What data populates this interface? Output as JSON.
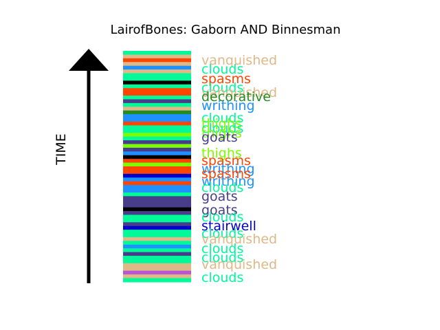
{
  "chart_data": {
    "type": "bar",
    "title": "LairofBones: Gaborn AND Binnesman",
    "ylabel": "TIME",
    "xlabel": "",
    "orientation": "vertical-stacked-timeline",
    "direction": "time increases upward",
    "bands": [
      {
        "label": "vanquished",
        "color": "#deb887"
      },
      {
        "label": "clouds",
        "color": "#00fa9a"
      },
      {
        "label": "spasms",
        "color": "#ff4500"
      },
      {
        "label": "clouds",
        "color": "#00fa9a"
      },
      {
        "label": "vanquished",
        "color": "#deb887"
      },
      {
        "label": "decorative",
        "color": "#228b22"
      },
      {
        "label": "writhing",
        "color": "#1e90ff"
      },
      {
        "label": "clouds",
        "color": "#00fa9a"
      },
      {
        "label": "thighs",
        "color": "#7cfc00"
      },
      {
        "label": "clouds",
        "color": "#00fa9a"
      },
      {
        "label": "thighs",
        "color": "#7cfc00"
      },
      {
        "label": "goats",
        "color": "#483d8b"
      },
      {
        "label": "thighs",
        "color": "#7cfc00"
      },
      {
        "label": "spasms",
        "color": "#ff4500"
      },
      {
        "label": "writhing",
        "color": "#1e90ff"
      },
      {
        "label": "spasms",
        "color": "#ff4500"
      },
      {
        "label": "writhing",
        "color": "#1e90ff"
      },
      {
        "label": "clouds",
        "color": "#00fa9a"
      },
      {
        "label": "goats",
        "color": "#483d8b"
      },
      {
        "label": "goats",
        "color": "#483d8b"
      },
      {
        "label": "clouds",
        "color": "#00fa9a"
      },
      {
        "label": "stairwell",
        "color": "#0000cd"
      },
      {
        "label": "clouds",
        "color": "#00fa9a"
      },
      {
        "label": "vanquished",
        "color": "#deb887"
      },
      {
        "label": "clouds",
        "color": "#00fa9a"
      },
      {
        "label": "clouds",
        "color": "#00fa9a"
      },
      {
        "label": "vanquished",
        "color": "#deb887"
      },
      {
        "label": "clouds",
        "color": "#00fa9a"
      }
    ],
    "stripes": [
      "#00fa9a",
      "#deb887",
      "#ff4500",
      "#deb887",
      "#1e90ff",
      "#deb887",
      "#00fa9a",
      "#00fa9a",
      "#000000",
      "#00fa9a",
      "#ff4500",
      "#ff4500",
      "#00fa9a",
      "#483d8b",
      "#00fa9a",
      "#deb887",
      "#228b22",
      "#1e90ff",
      "#1e90ff",
      "#ff4500",
      "#00fa9a",
      "#00fa9a",
      "#7cfc00",
      "#00fa9a",
      "#483d8b",
      "#7cfc00",
      "#483d8b",
      "#1e90ff",
      "#000000",
      "#ff4500",
      "#7cfc00",
      "#ff4500",
      "#ff4500",
      "#0000cd",
      "#1e90ff",
      "#ff4500",
      "#1e90ff",
      "#1e90ff",
      "#00fa9a",
      "#483d8b",
      "#483d8b",
      "#483d8b",
      "#000000",
      "#483d8b",
      "#00fa9a",
      "#00fa9a",
      "#483d8b",
      "#0000cd",
      "#00fa9a",
      "#00fa9a",
      "#deb887",
      "#00fa9a",
      "#1e90ff",
      "#00fa9a",
      "#483d8b",
      "#00fa9a",
      "#00fa9a",
      "#deb887",
      "#deb887",
      "#ba55d3",
      "#deb887",
      "#00fa9a"
    ]
  }
}
